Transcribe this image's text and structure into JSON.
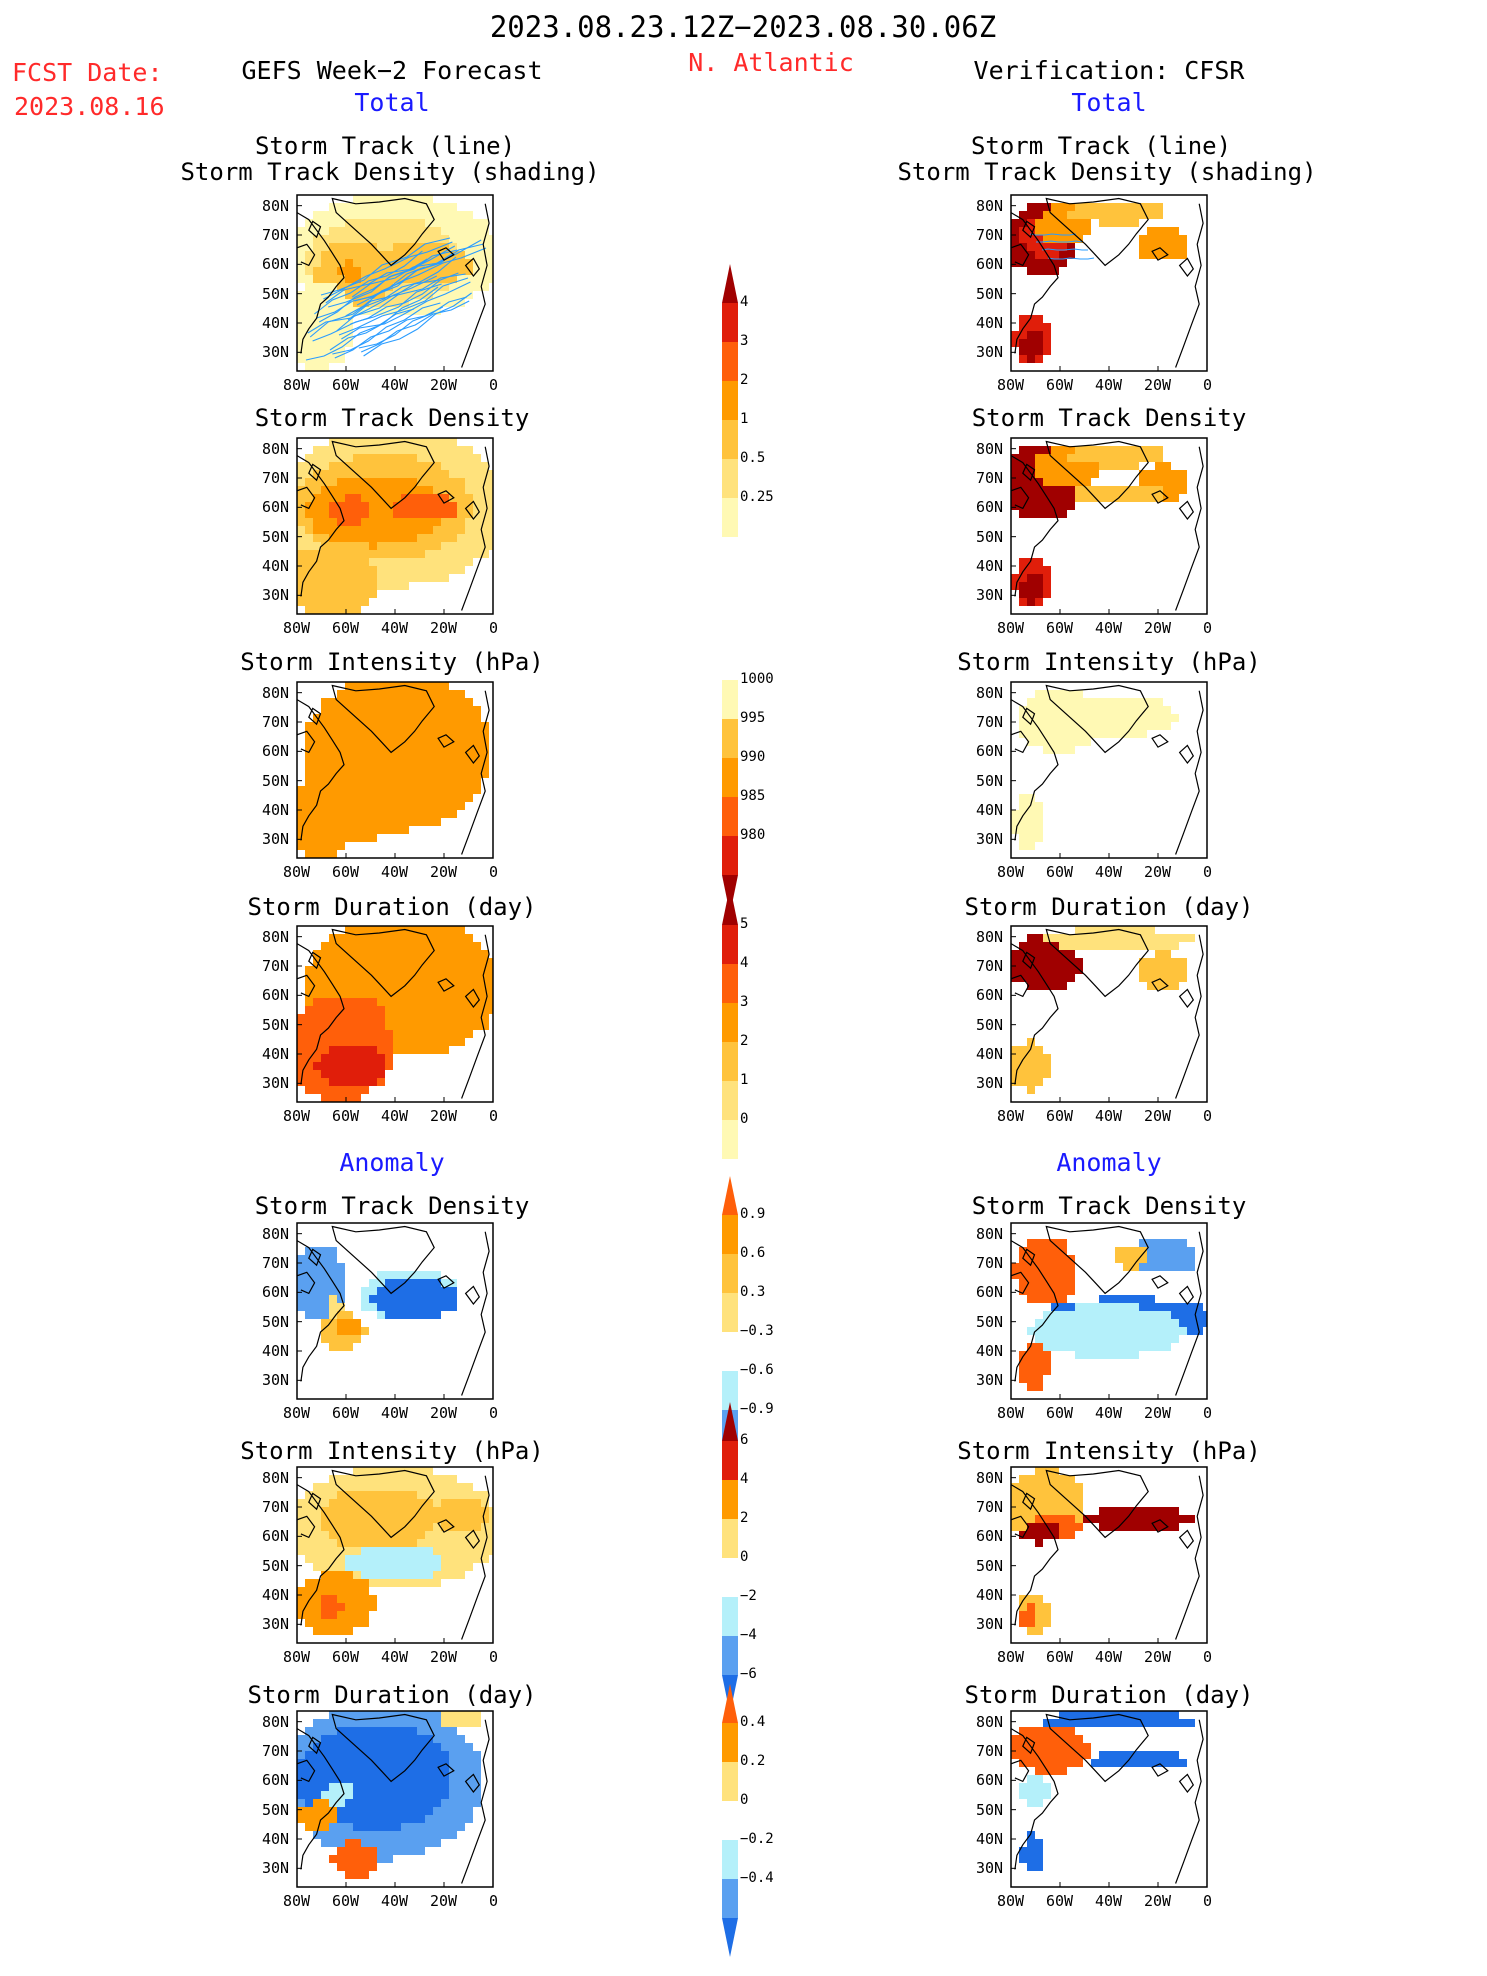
{
  "header": {
    "date_range": "2023.08.23.12Z−2023.08.30.06Z",
    "region": "N. Atlantic",
    "fcst_label": "FCST Date:",
    "fcst_date": "2023.08.16",
    "left_title": "GEFS Week−2 Forecast",
    "right_title": "Verification: CFSR",
    "total_label": "Total",
    "anomaly_label": "Anomaly"
  },
  "axes": {
    "lon_ticks": [
      "80W",
      "60W",
      "40W",
      "20W",
      "0"
    ],
    "lat_ticks": [
      "80N",
      "70N",
      "60N",
      "50N",
      "40N",
      "30N"
    ]
  },
  "panels": {
    "track": [
      "Storm Track (line)",
      "Storm Track Density (shading)"
    ],
    "density": "Storm Track Density",
    "intensity": "Storm Intensity (hPa)",
    "duration": "Storm Duration (day)"
  },
  "colorbars": {
    "density": [
      "4",
      "3",
      "2",
      "1",
      "0.5",
      "0.25"
    ],
    "intensity": [
      "1000",
      "995",
      "990",
      "985",
      "980"
    ],
    "duration": [
      "5",
      "4",
      "3",
      "2",
      "1",
      "0"
    ],
    "anom_density": [
      "0.9",
      "0.6",
      "0.3",
      "−0.3",
      "−0.6",
      "−0.9"
    ],
    "anom_intensity": [
      "6",
      "4",
      "2",
      "0",
      "−2",
      "−4",
      "−6"
    ],
    "anom_duration": [
      "0.4",
      "0.2",
      "0",
      "−0.2",
      "−0.4"
    ]
  },
  "colors": {
    "very_light_yellow": "#fff9b4",
    "light_yellow": "#ffe27c",
    "yellow_orange": "#ffc33c",
    "orange": "#ff9a00",
    "dark_orange": "#ff5f0a",
    "red": "#e01e0a",
    "dark_red": "#a00000",
    "light_blue": "#b4f0fa",
    "mid_blue": "#5aa0f0",
    "deep_blue": "#1e6ee6",
    "track_line": "#2a9cff",
    "title_red": "#ff2a2a",
    "title_blue": "#1a1aff"
  }
}
